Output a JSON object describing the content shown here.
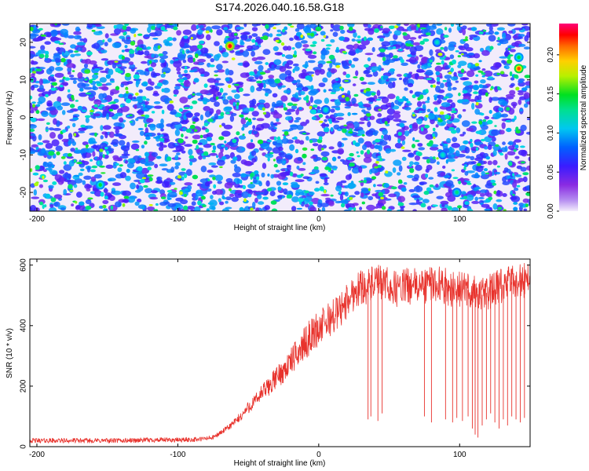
{
  "title": "S174.2026.040.16.58.G18",
  "colors": {
    "snr_line": "#e8322c",
    "axis": "#000000",
    "background_low": "#f2ecfb"
  },
  "chart_data": [
    {
      "type": "heatmap",
      "title": "S174.2026.040.16.58.G18",
      "xlabel": "Height of straight line (km)",
      "ylabel": "Frequency (Hz)",
      "xlim": [
        -205,
        150
      ],
      "ylim": [
        -25,
        25
      ],
      "xticks": [
        -200,
        -100,
        0,
        100
      ],
      "yticks": [
        -20,
        -10,
        0,
        10,
        20
      ],
      "xtick_labels": [
        "-200",
        "-100",
        "0",
        "100"
      ],
      "ytick_labels": [
        "-20",
        "-10",
        "0",
        "10",
        "20"
      ],
      "colorbar": {
        "label": "Normalized spectral amplitude",
        "range": [
          0,
          0.24
        ],
        "ticks": [
          0,
          0.05,
          0.1,
          0.15,
          0.2
        ],
        "tick_labels": [
          "0.00",
          "0.05",
          "0.10",
          "0.15",
          "0.20"
        ],
        "colormap": [
          "#f4eefc",
          "#8a2be2",
          "#3a1cff",
          "#0090ff",
          "#00e0e0",
          "#00e040",
          "#c8ff00",
          "#ffd000",
          "#ff6a00",
          "#ff0000",
          "#ff0070"
        ]
      },
      "hotspots": [
        {
          "x": -63,
          "y": 19,
          "value": 0.22
        },
        {
          "x": 142,
          "y": 13,
          "value": 0.2
        },
        {
          "x": 142,
          "y": 16,
          "value": 0.12
        },
        {
          "x": -155,
          "y": -18,
          "value": 0.12
        },
        {
          "x": 98,
          "y": -20,
          "value": 0.11
        },
        {
          "x": 88,
          "y": -10,
          "value": 0.1
        },
        {
          "x": 84,
          "y": 20,
          "value": 0.1
        },
        {
          "x": 5,
          "y": 2,
          "value": 0.1
        }
      ]
    },
    {
      "type": "line",
      "xlabel": "Height of straight line (km)",
      "ylabel": "SNR (10 * v/v)",
      "xlim": [
        -205,
        150
      ],
      "ylim": [
        0,
        620
      ],
      "xticks": [
        -200,
        -100,
        0,
        100
      ],
      "yticks": [
        0,
        200,
        400,
        600
      ],
      "xtick_labels": [
        "-200",
        "-100",
        "0",
        "100"
      ],
      "ytick_labels": [
        "0",
        "200",
        "400",
        "600"
      ],
      "series": [
        {
          "x": [
            -205,
            -180,
            -160,
            -140,
            -120,
            -100,
            -85,
            -75,
            -70,
            -65,
            -60,
            -55,
            -50,
            -45,
            -40,
            -35,
            -30,
            -25,
            -20,
            -15,
            -10,
            -5,
            0,
            5,
            10,
            15,
            20,
            25,
            30,
            35,
            40,
            45,
            50,
            55,
            60,
            65,
            70,
            75,
            80,
            85,
            90,
            95,
            100,
            105,
            110,
            115,
            120,
            125,
            130,
            135,
            140,
            145,
            150
          ],
          "y": [
            20,
            20,
            20,
            20,
            22,
            22,
            24,
            30,
            45,
            60,
            80,
            100,
            130,
            150,
            180,
            200,
            230,
            250,
            280,
            310,
            340,
            370,
            390,
            410,
            430,
            450,
            480,
            510,
            530,
            530,
            540,
            540,
            530,
            520,
            530,
            530,
            530,
            530,
            540,
            540,
            530,
            520,
            520,
            520,
            510,
            500,
            510,
            520,
            530,
            540,
            550,
            550,
            560
          ]
        }
      ],
      "dropouts": [
        {
          "x": 35,
          "y": 90
        },
        {
          "x": 37,
          "y": 100
        },
        {
          "x": 42,
          "y": 85
        },
        {
          "x": 45,
          "y": 110
        },
        {
          "x": 75,
          "y": 100
        },
        {
          "x": 80,
          "y": 80
        },
        {
          "x": 90,
          "y": 90
        },
        {
          "x": 95,
          "y": 80
        },
        {
          "x": 98,
          "y": 95
        },
        {
          "x": 102,
          "y": 85
        },
        {
          "x": 106,
          "y": 100
        },
        {
          "x": 109,
          "y": 60
        },
        {
          "x": 111,
          "y": 40
        },
        {
          "x": 113,
          "y": 30
        },
        {
          "x": 116,
          "y": 70
        },
        {
          "x": 119,
          "y": 90
        },
        {
          "x": 122,
          "y": 110
        },
        {
          "x": 125,
          "y": 80
        },
        {
          "x": 128,
          "y": 60
        },
        {
          "x": 131,
          "y": 90
        },
        {
          "x": 134,
          "y": 70
        },
        {
          "x": 137,
          "y": 100
        },
        {
          "x": 140,
          "y": 90
        },
        {
          "x": 143,
          "y": 80
        },
        {
          "x": 146,
          "y": 95
        }
      ]
    }
  ]
}
